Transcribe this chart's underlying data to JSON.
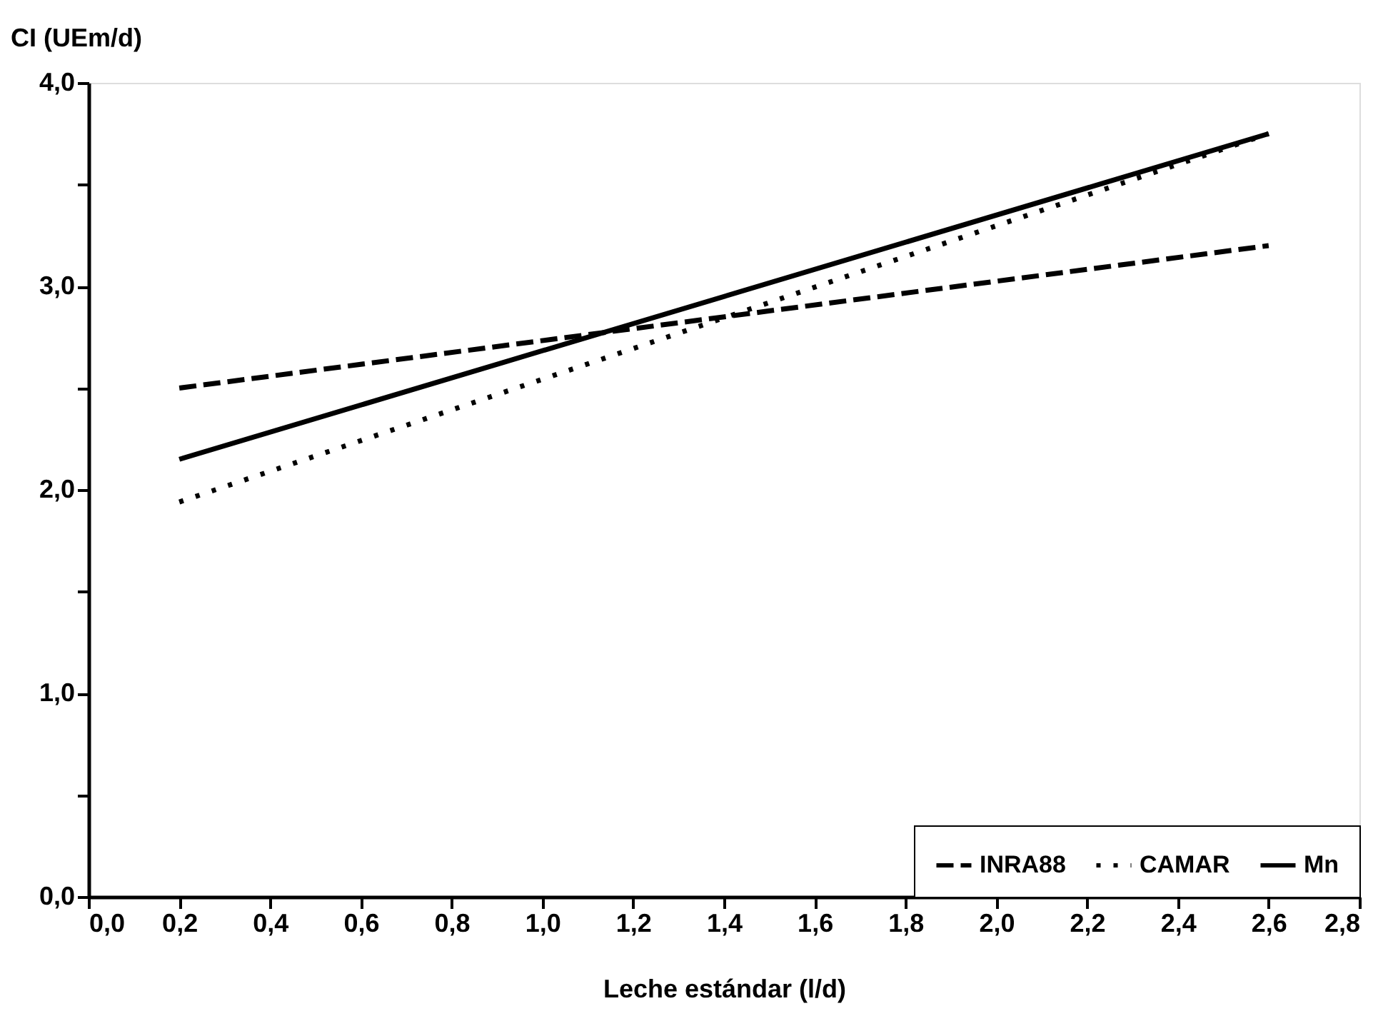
{
  "chart_data": {
    "type": "line",
    "xlabel": "Leche estándar (l/d)",
    "ylabel": "CI (UEm/d)",
    "x": [
      0.2,
      2.6
    ],
    "series": [
      {
        "name": "INRA88",
        "color": "#000000",
        "line_style": "dashed",
        "values": [
          2.5,
          3.2
        ]
      },
      {
        "name": "CAMAR",
        "color": "#000000",
        "line_style": "dotted",
        "values": [
          1.94,
          3.75
        ]
      },
      {
        "name": "Mn",
        "color": "#000000",
        "line_style": "solid",
        "values": [
          2.15,
          3.75
        ]
      }
    ],
    "xlim": [
      0,
      2.8
    ],
    "xticks": [
      {
        "value": 0,
        "label": "0,0"
      },
      {
        "value": 0.2,
        "label": "0,2"
      },
      {
        "value": 0.4,
        "label": "0,4"
      },
      {
        "value": 0.6,
        "label": "0,6"
      },
      {
        "value": 0.8,
        "label": "0,8"
      },
      {
        "value": 1.0,
        "label": "1,0"
      },
      {
        "value": 1.2,
        "label": "1,2"
      },
      {
        "value": 1.4,
        "label": "1,4"
      },
      {
        "value": 1.6,
        "label": "1,6"
      },
      {
        "value": 1.8,
        "label": "1,8"
      },
      {
        "value": 2.0,
        "label": "2,0"
      },
      {
        "value": 2.2,
        "label": "2,2"
      },
      {
        "value": 2.4,
        "label": "2,4"
      },
      {
        "value": 2.6,
        "label": "2,6"
      },
      {
        "value": 2.8,
        "label": "2,8"
      }
    ],
    "ylim": [
      0,
      4
    ],
    "yticks": [
      {
        "value": 0,
        "label": "0,0"
      },
      {
        "value": 0.5,
        "label": null
      },
      {
        "value": 1,
        "label": "1,0"
      },
      {
        "value": 1.5,
        "label": null
      },
      {
        "value": 2,
        "label": "2,0"
      },
      {
        "value": 2.5,
        "label": null
      },
      {
        "value": 3,
        "label": "3,0"
      },
      {
        "value": 3.5,
        "label": null
      },
      {
        "value": 4,
        "label": "4,0"
      }
    ],
    "grid": false,
    "legend": "bottom right",
    "marker": "none"
  }
}
